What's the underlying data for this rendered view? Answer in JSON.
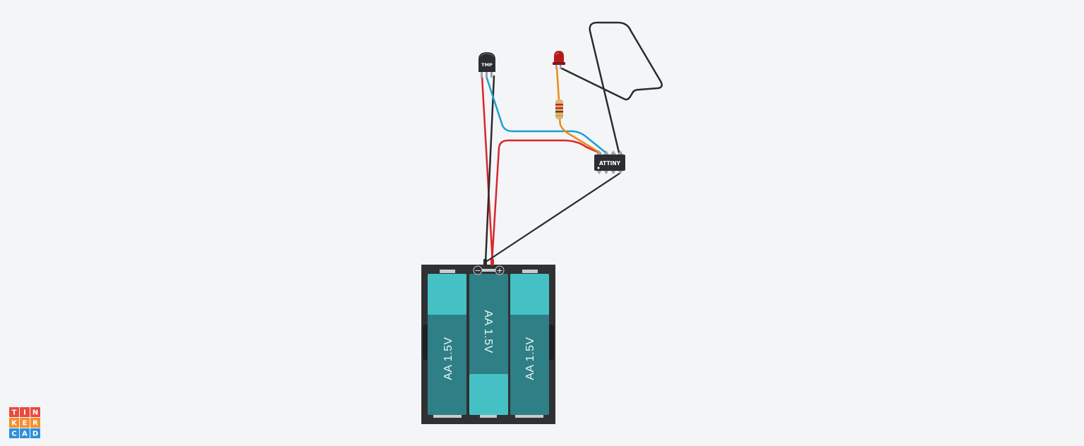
{
  "app": {
    "name": "Tinkercad"
  },
  "logo": {
    "letters": [
      [
        "T",
        "I",
        "N"
      ],
      [
        "K",
        "E",
        "R"
      ],
      [
        "C",
        "A",
        "D"
      ]
    ],
    "colors": [
      [
        "#e94a3f",
        "#e94a3f",
        "#e94a3f"
      ],
      [
        "#f58e2f",
        "#f58e2f",
        "#f58e2f"
      ],
      [
        "#2f8fd8",
        "#2f8fd8",
        "#2f8fd8"
      ]
    ]
  },
  "components": {
    "temp_sensor": {
      "label": "TMP"
    },
    "microcontroller": {
      "label": "ATTINY"
    },
    "led": {
      "color": "#b21c1c"
    },
    "resistor": {
      "body_color": "#d9b77a"
    },
    "battery_pack": {
      "minus_symbol": "−",
      "plus_symbol": "+",
      "cells": [
        "AA 1.5V",
        "AA 1.5V",
        "AA 1.5V"
      ]
    }
  },
  "wire_colors": {
    "red": "#d9262c",
    "black": "#2b2b2b",
    "blue": "#1aa0cf",
    "orange": "#ef8a16"
  }
}
